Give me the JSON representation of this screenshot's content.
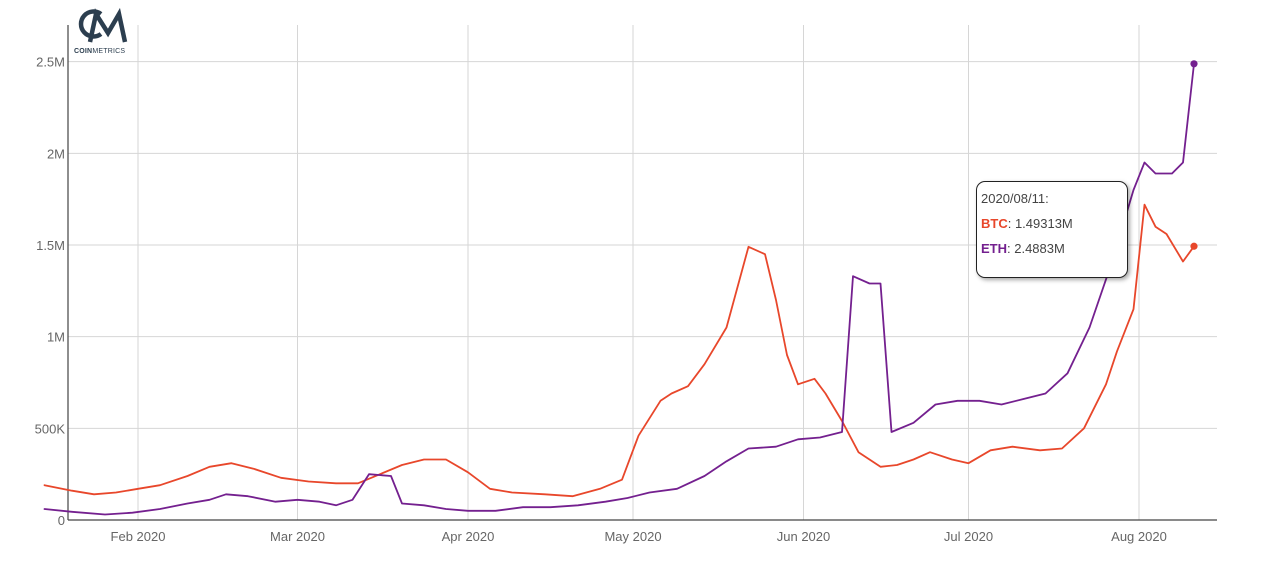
{
  "logo": {
    "mark": "CM",
    "subtitle_bold": "COIN",
    "subtitle_rest": "METRICS"
  },
  "tooltip": {
    "date": "2020/08/11:",
    "rows": [
      {
        "name": "BTC",
        "value": ": 1.49313M"
      },
      {
        "name": "ETH",
        "value": ": 2.4883M"
      }
    ]
  },
  "colors": {
    "btc": "#e8472b",
    "eth": "#74208f",
    "grid": "#d6d6d6",
    "axis": "#444444"
  },
  "chart_data": {
    "type": "line",
    "title": "",
    "xlabel": "",
    "ylabel": "",
    "x_range": [
      "2020-01-15",
      "2020-08-14"
    ],
    "ylim": [
      0,
      2700000
    ],
    "y_ticks": [
      {
        "value": 0,
        "label": "0"
      },
      {
        "value": 500000,
        "label": "500K"
      },
      {
        "value": 1000000,
        "label": "1M"
      },
      {
        "value": 1500000,
        "label": "1.5M"
      },
      {
        "value": 2000000,
        "label": "2M"
      },
      {
        "value": 2500000,
        "label": "2.5M"
      }
    ],
    "x_ticks": [
      {
        "date": "2020-02-01",
        "label": "Feb 2020"
      },
      {
        "date": "2020-03-01",
        "label": "Mar 2020"
      },
      {
        "date": "2020-04-01",
        "label": "Apr 2020"
      },
      {
        "date": "2020-05-01",
        "label": "May 2020"
      },
      {
        "date": "2020-06-01",
        "label": "Jun 2020"
      },
      {
        "date": "2020-07-01",
        "label": "Jul 2020"
      },
      {
        "date": "2020-08-01",
        "label": "Aug 2020"
      }
    ],
    "grid": true,
    "series": [
      {
        "name": "BTC",
        "color": "#e8472b",
        "points": [
          [
            "2020-01-15",
            190000
          ],
          [
            "2020-01-20",
            160000
          ],
          [
            "2020-01-24",
            140000
          ],
          [
            "2020-01-28",
            150000
          ],
          [
            "2020-02-01",
            170000
          ],
          [
            "2020-02-05",
            190000
          ],
          [
            "2020-02-10",
            240000
          ],
          [
            "2020-02-14",
            290000
          ],
          [
            "2020-02-18",
            310000
          ],
          [
            "2020-02-22",
            280000
          ],
          [
            "2020-02-27",
            230000
          ],
          [
            "2020-03-03",
            210000
          ],
          [
            "2020-03-08",
            200000
          ],
          [
            "2020-03-12",
            200000
          ],
          [
            "2020-03-16",
            250000
          ],
          [
            "2020-03-20",
            300000
          ],
          [
            "2020-03-24",
            330000
          ],
          [
            "2020-03-28",
            330000
          ],
          [
            "2020-04-01",
            260000
          ],
          [
            "2020-04-05",
            170000
          ],
          [
            "2020-04-09",
            150000
          ],
          [
            "2020-04-15",
            140000
          ],
          [
            "2020-04-20",
            130000
          ],
          [
            "2020-04-25",
            170000
          ],
          [
            "2020-04-29",
            220000
          ],
          [
            "2020-05-02",
            460000
          ],
          [
            "2020-05-06",
            650000
          ],
          [
            "2020-05-08",
            690000
          ],
          [
            "2020-05-11",
            730000
          ],
          [
            "2020-05-14",
            850000
          ],
          [
            "2020-05-18",
            1050000
          ],
          [
            "2020-05-22",
            1490000
          ],
          [
            "2020-05-25",
            1450000
          ],
          [
            "2020-05-27",
            1200000
          ],
          [
            "2020-05-29",
            900000
          ],
          [
            "2020-05-31",
            740000
          ],
          [
            "2020-06-03",
            770000
          ],
          [
            "2020-06-05",
            690000
          ],
          [
            "2020-06-08",
            540000
          ],
          [
            "2020-06-11",
            370000
          ],
          [
            "2020-06-15",
            290000
          ],
          [
            "2020-06-18",
            300000
          ],
          [
            "2020-06-21",
            330000
          ],
          [
            "2020-06-24",
            370000
          ],
          [
            "2020-06-28",
            330000
          ],
          [
            "2020-07-01",
            310000
          ],
          [
            "2020-07-05",
            380000
          ],
          [
            "2020-07-09",
            400000
          ],
          [
            "2020-07-14",
            380000
          ],
          [
            "2020-07-18",
            390000
          ],
          [
            "2020-07-22",
            500000
          ],
          [
            "2020-07-26",
            740000
          ],
          [
            "2020-07-28",
            920000
          ],
          [
            "2020-07-31",
            1150000
          ],
          [
            "2020-08-02",
            1720000
          ],
          [
            "2020-08-04",
            1600000
          ],
          [
            "2020-08-06",
            1560000
          ],
          [
            "2020-08-09",
            1410000
          ],
          [
            "2020-08-11",
            1493130
          ]
        ]
      },
      {
        "name": "ETH",
        "color": "#74208f",
        "points": [
          [
            "2020-01-15",
            60000
          ],
          [
            "2020-01-20",
            45000
          ],
          [
            "2020-01-26",
            30000
          ],
          [
            "2020-01-31",
            40000
          ],
          [
            "2020-02-05",
            60000
          ],
          [
            "2020-02-10",
            90000
          ],
          [
            "2020-02-14",
            110000
          ],
          [
            "2020-02-17",
            140000
          ],
          [
            "2020-02-21",
            130000
          ],
          [
            "2020-02-26",
            100000
          ],
          [
            "2020-03-01",
            110000
          ],
          [
            "2020-03-05",
            100000
          ],
          [
            "2020-03-08",
            80000
          ],
          [
            "2020-03-11",
            110000
          ],
          [
            "2020-03-14",
            250000
          ],
          [
            "2020-03-18",
            240000
          ],
          [
            "2020-03-20",
            90000
          ],
          [
            "2020-03-24",
            80000
          ],
          [
            "2020-03-28",
            60000
          ],
          [
            "2020-04-01",
            50000
          ],
          [
            "2020-04-06",
            50000
          ],
          [
            "2020-04-11",
            70000
          ],
          [
            "2020-04-16",
            70000
          ],
          [
            "2020-04-21",
            80000
          ],
          [
            "2020-04-26",
            100000
          ],
          [
            "2020-04-30",
            120000
          ],
          [
            "2020-05-04",
            150000
          ],
          [
            "2020-05-09",
            170000
          ],
          [
            "2020-05-14",
            240000
          ],
          [
            "2020-05-18",
            320000
          ],
          [
            "2020-05-22",
            390000
          ],
          [
            "2020-05-27",
            400000
          ],
          [
            "2020-05-31",
            440000
          ],
          [
            "2020-06-04",
            450000
          ],
          [
            "2020-06-08",
            480000
          ],
          [
            "2020-06-10",
            1330000
          ],
          [
            "2020-06-13",
            1290000
          ],
          [
            "2020-06-15",
            1290000
          ],
          [
            "2020-06-17",
            480000
          ],
          [
            "2020-06-21",
            530000
          ],
          [
            "2020-06-25",
            630000
          ],
          [
            "2020-06-29",
            650000
          ],
          [
            "2020-07-03",
            650000
          ],
          [
            "2020-07-07",
            630000
          ],
          [
            "2020-07-11",
            660000
          ],
          [
            "2020-07-15",
            690000
          ],
          [
            "2020-07-19",
            800000
          ],
          [
            "2020-07-23",
            1050000
          ],
          [
            "2020-07-27",
            1400000
          ],
          [
            "2020-07-31",
            1800000
          ],
          [
            "2020-08-02",
            1950000
          ],
          [
            "2020-08-04",
            1890000
          ],
          [
            "2020-08-07",
            1890000
          ],
          [
            "2020-08-09",
            1950000
          ],
          [
            "2020-08-11",
            2488300
          ]
        ]
      }
    ]
  }
}
